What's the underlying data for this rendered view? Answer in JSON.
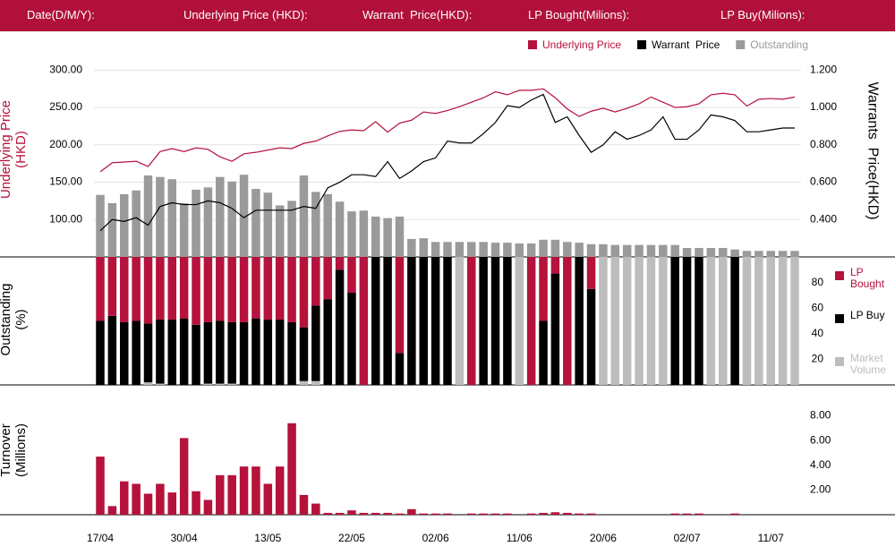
{
  "header": {
    "labels": [
      "Date(D/M/Y):",
      "Underlying Price (HKD):",
      "Warrant  Price(HKD):",
      "LP Bought(Milions):",
      "LP Buy(Milions):"
    ]
  },
  "chart_data": [
    {
      "type": "combo",
      "categories": [
        "17/04",
        null,
        null,
        null,
        null,
        null,
        null,
        "30/04",
        null,
        null,
        null,
        null,
        null,
        null,
        "13/05",
        null,
        null,
        null,
        null,
        null,
        null,
        "22/05",
        null,
        null,
        null,
        null,
        null,
        null,
        "02/06",
        null,
        null,
        null,
        null,
        null,
        null,
        "11/06",
        null,
        null,
        null,
        null,
        null,
        null,
        "20/06",
        null,
        null,
        null,
        null,
        null,
        null,
        "02/07",
        null,
        null,
        null,
        null,
        null,
        null,
        "11/07",
        null,
        null
      ],
      "ylabel": "Underlying Price (HKD)",
      "y2label": "Warrants  Price(HKD)",
      "ylim": [
        50,
        310
      ],
      "yticks": [
        {
          "value": 100,
          "label": "100.00"
        },
        {
          "value": 150,
          "label": "150.00"
        },
        {
          "value": 200,
          "label": "200.00"
        },
        {
          "value": 250,
          "label": "250.00"
        },
        {
          "value": 300,
          "label": "300.00"
        }
      ],
      "y2lim": [
        0.2,
        1.24
      ],
      "y2ticks": [
        {
          "value": 0.4,
          "label": "0.400"
        },
        {
          "value": 0.6,
          "label": "0.600"
        },
        {
          "value": 0.8,
          "label": "0.800"
        },
        {
          "value": 1.0,
          "label": "1.000"
        },
        {
          "value": 1.2,
          "label": "1.200"
        }
      ],
      "grid": true,
      "series": [
        {
          "name": "Underlying Price",
          "type": "line",
          "color": "#b5123c",
          "values": [
            164,
            176,
            177,
            178,
            171,
            191,
            195,
            191,
            196,
            194,
            184,
            178,
            188,
            190,
            193,
            196,
            195,
            202,
            205,
            212,
            218,
            220,
            219,
            231,
            217,
            229,
            233,
            244,
            242,
            246,
            251,
            257,
            263,
            271,
            267,
            273,
            273,
            275,
            263,
            248,
            238,
            245,
            249,
            244,
            249,
            255,
            264,
            257,
            250,
            251,
            255,
            267,
            269,
            267,
            252,
            261,
            262,
            261,
            264
          ]
        },
        {
          "name": "Warrant  Price",
          "type": "line",
          "axis": "y2",
          "color": "#000000",
          "values": [
            0.34,
            0.4,
            0.39,
            0.41,
            0.37,
            0.47,
            0.49,
            0.48,
            0.48,
            0.5,
            0.49,
            0.46,
            0.41,
            0.45,
            0.45,
            0.45,
            0.45,
            0.47,
            0.46,
            0.57,
            0.6,
            0.64,
            0.64,
            0.63,
            0.71,
            0.62,
            0.66,
            0.71,
            0.73,
            0.82,
            0.81,
            0.81,
            0.86,
            0.92,
            1.01,
            1.0,
            1.04,
            1.07,
            0.92,
            0.95,
            0.85,
            0.76,
            0.8,
            0.87,
            0.83,
            0.85,
            0.88,
            0.95,
            0.83,
            0.83,
            0.88,
            0.96,
            0.95,
            0.93,
            0.87,
            0.87,
            0.88,
            0.89,
            0.89
          ]
        },
        {
          "name": "Outstanding",
          "type": "bar",
          "color": "#9a9a9a",
          "values": [
            133,
            122,
            134,
            139,
            159,
            157,
            154,
            122,
            140,
            143,
            157,
            151,
            160,
            141,
            136,
            119,
            125,
            159,
            137,
            134,
            124,
            111,
            112,
            104,
            102,
            104,
            74,
            75,
            70,
            70,
            70,
            70,
            70,
            69,
            69,
            68,
            68,
            73,
            73,
            70,
            69,
            67,
            67,
            66,
            66,
            66,
            66,
            66,
            66,
            62,
            62,
            62,
            62,
            60,
            58,
            58,
            58,
            58,
            58
          ]
        }
      ]
    },
    {
      "type": "stacked_bar",
      "ylabel": "Outstanding (%)",
      "ylim": [
        0,
        100
      ],
      "yticks": [
        20,
        40,
        60,
        80
      ],
      "series": [
        {
          "name": "LP Bought",
          "color": "#b5123c",
          "values": [
            50,
            46,
            51,
            50,
            52,
            49,
            49,
            48,
            53,
            51,
            50,
            51,
            51,
            48,
            49,
            49,
            51,
            55,
            38,
            33,
            10,
            28,
            100,
            0,
            0,
            75,
            0,
            0,
            0,
            0,
            0,
            100,
            0,
            0,
            0,
            0,
            100,
            50,
            13,
            100,
            0,
            25,
            0,
            0,
            0,
            0,
            0,
            0,
            0,
            0,
            0,
            0,
            0,
            0,
            0,
            0,
            0,
            0,
            0
          ]
        },
        {
          "name": "LP Buy",
          "color": "#000000",
          "values": [
            50,
            54,
            49,
            50,
            46,
            50,
            51,
            52,
            47,
            48,
            49,
            48,
            49,
            52,
            51,
            51,
            49,
            42,
            59,
            67,
            90,
            72,
            0,
            100,
            100,
            25,
            100,
            100,
            100,
            100,
            0,
            0,
            100,
            100,
            100,
            0,
            0,
            50,
            87,
            0,
            100,
            75,
            0,
            0,
            0,
            0,
            0,
            0,
            100,
            100,
            100,
            0,
            0,
            100,
            0,
            0,
            0,
            0,
            0
          ]
        },
        {
          "name": "Market Volume",
          "color": "#bdbdbd",
          "values": [
            0,
            0,
            0,
            0,
            2,
            1,
            0,
            0,
            0,
            1,
            1,
            1,
            0,
            0,
            0,
            0,
            0,
            3,
            3,
            0,
            0,
            0,
            0,
            0,
            0,
            0,
            0,
            0,
            0,
            0,
            100,
            0,
            0,
            0,
            0,
            100,
            0,
            0,
            0,
            0,
            0,
            0,
            100,
            100,
            100,
            100,
            100,
            100,
            0,
            0,
            0,
            100,
            100,
            0,
            100,
            100,
            100,
            100,
            100
          ]
        }
      ]
    },
    {
      "type": "bar",
      "ylabel": "Turnover (Millions)",
      "color": "#b5123c",
      "ylim": [
        0,
        10.5
      ],
      "yticks": [
        {
          "value": 2,
          "label": "2.00"
        },
        {
          "value": 4,
          "label": "4.00"
        },
        {
          "value": 6,
          "label": "6.00"
        },
        {
          "value": 8,
          "label": "8.00"
        }
      ],
      "values": [
        4.7,
        0.7,
        2.7,
        2.5,
        1.7,
        2.5,
        1.8,
        6.2,
        1.9,
        1.2,
        3.2,
        3.2,
        3.9,
        3.9,
        2.5,
        3.9,
        7.4,
        1.6,
        0.9,
        0.15,
        0.15,
        0.35,
        0.15,
        0.15,
        0.15,
        0.1,
        0.45,
        0.1,
        0.1,
        0.1,
        0,
        0.1,
        0.1,
        0.1,
        0.1,
        0,
        0.1,
        0.15,
        0.2,
        0.15,
        0.1,
        0.1,
        0,
        0,
        0,
        0,
        0,
        0,
        0.1,
        0.1,
        0.1,
        0,
        0,
        0.1,
        0,
        0,
        0,
        0,
        0
      ]
    }
  ]
}
